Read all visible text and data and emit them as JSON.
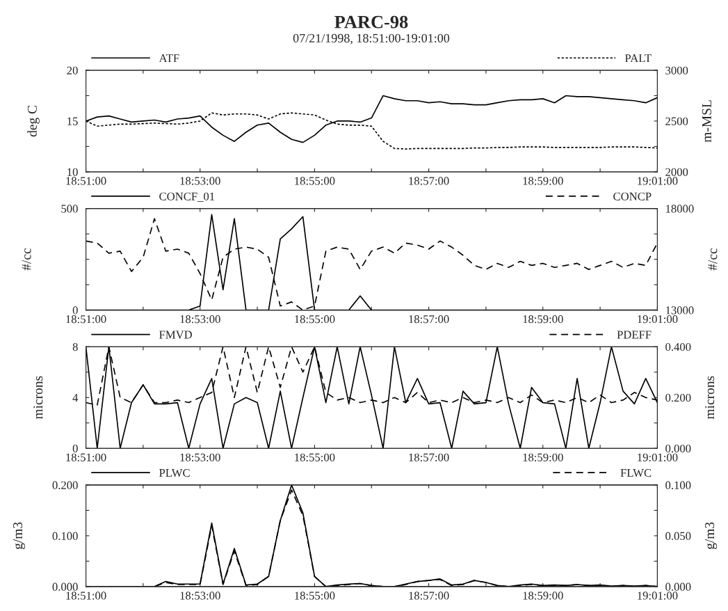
{
  "chart_data": [
    {
      "type": "line",
      "title": "PARC-98",
      "subtitle": "07/21/1998, 18:51:00-19:01:00",
      "ylabel": "deg C",
      "y2label": "m-MSL",
      "legend": "top",
      "grid": false,
      "x": [
        18.85,
        18.8533,
        18.8567,
        18.86,
        18.8633,
        18.8667,
        18.87,
        18.8733,
        18.8767,
        18.88,
        18.8833,
        18.8867,
        18.89,
        18.8933,
        18.8967,
        18.9,
        18.9033,
        18.9067,
        18.91,
        18.9133,
        18.9167,
        18.92,
        18.9233,
        18.9267,
        18.93,
        18.9333,
        18.9367,
        18.94,
        18.9433,
        18.9467,
        18.95,
        18.9533,
        18.9567,
        18.96,
        18.9633,
        18.9667,
        18.97,
        18.9733,
        18.9767,
        18.98,
        18.9833,
        18.9867,
        18.99,
        18.9933,
        18.9967,
        19.0,
        19.0033,
        19.0067,
        19.01,
        19.0133,
        19.0167
      ],
      "xlim": [
        18.85,
        19.0167
      ],
      "xticks": [
        {
          "value": 18.85,
          "label": "18:51:00"
        },
        {
          "value": 18.8667,
          "label": null
        },
        {
          "value": 18.8833,
          "label": "18:53:00"
        },
        {
          "value": 18.9,
          "label": null
        },
        {
          "value": 18.9167,
          "label": "18:55:00"
        },
        {
          "value": 18.9333,
          "label": null
        },
        {
          "value": 18.95,
          "label": "18:57:00"
        },
        {
          "value": 18.9667,
          "label": null
        },
        {
          "value": 18.9833,
          "label": "18:59:00"
        },
        {
          "value": 19.0,
          "label": null
        },
        {
          "value": 19.0167,
          "label": "19:01:00"
        }
      ],
      "ylim": [
        10,
        20
      ],
      "yticks": [
        10,
        {
          "value": 12.5,
          "label": null
        },
        15,
        {
          "value": 17.5,
          "label": null
        },
        20
      ],
      "y2lim": [
        2000,
        3000
      ],
      "y2ticks": [
        2000,
        {
          "value": 2250,
          "label": null
        },
        2500,
        {
          "value": 2750,
          "label": null
        },
        3000
      ],
      "series": [
        {
          "name": "ATF",
          "color": "#000000",
          "line_style": "solid",
          "values": [
            15.0,
            15.4,
            15.5,
            15.2,
            14.9,
            15.0,
            15.1,
            14.9,
            15.2,
            15.3,
            15.5,
            14.4,
            13.6,
            13.0,
            13.9,
            14.6,
            14.8,
            13.9,
            13.2,
            12.9,
            13.6,
            14.6,
            15.0,
            15.0,
            14.9,
            15.3,
            17.5,
            17.2,
            17.0,
            17.0,
            16.8,
            16.9,
            16.7,
            16.7,
            16.6,
            16.6,
            16.8,
            17.0,
            17.1,
            17.1,
            17.2,
            16.8,
            17.5,
            17.4,
            17.4,
            17.3,
            17.2,
            17.1,
            17.0,
            16.8,
            17.3
          ]
        },
        {
          "name": "PALT",
          "color": "#000000",
          "line_style": "dotted",
          "axis": "y2",
          "values": [
            2500,
            2450,
            2460,
            2470,
            2470,
            2475,
            2480,
            2475,
            2470,
            2480,
            2500,
            2580,
            2560,
            2570,
            2570,
            2560,
            2520,
            2570,
            2580,
            2570,
            2560,
            2510,
            2470,
            2460,
            2460,
            2450,
            2300,
            2230,
            2225,
            2230,
            2230,
            2230,
            2230,
            2230,
            2235,
            2235,
            2240,
            2240,
            2245,
            2245,
            2245,
            2240,
            2240,
            2240,
            2240,
            2240,
            2245,
            2245,
            2245,
            2240,
            2235
          ]
        }
      ]
    },
    {
      "type": "line",
      "ylabel": "#/cc",
      "y2label": "#/cc",
      "legend": "top",
      "grid": false,
      "x": [
        18.85,
        18.8533,
        18.8567,
        18.86,
        18.8633,
        18.8667,
        18.87,
        18.8733,
        18.8767,
        18.88,
        18.8833,
        18.8867,
        18.89,
        18.8933,
        18.8967,
        18.9,
        18.9033,
        18.9067,
        18.91,
        18.9133,
        18.9167,
        18.92,
        18.9233,
        18.9267,
        18.93,
        18.9333,
        18.9367,
        18.94,
        18.9433,
        18.9467,
        18.95,
        18.9533,
        18.9567,
        18.96,
        18.9633,
        18.9667,
        18.97,
        18.9733,
        18.9767,
        18.98,
        18.9833,
        18.9867,
        18.99,
        18.9933,
        18.9967,
        19.0,
        19.0033,
        19.0067,
        19.01,
        19.0133,
        19.0167
      ],
      "xlim": [
        18.85,
        19.0167
      ],
      "xticks": [
        {
          "value": 18.85,
          "label": "18:51:00"
        },
        {
          "value": 18.8667,
          "label": null
        },
        {
          "value": 18.8833,
          "label": "18:53:00"
        },
        {
          "value": 18.9,
          "label": null
        },
        {
          "value": 18.9167,
          "label": "18:55:00"
        },
        {
          "value": 18.9333,
          "label": null
        },
        {
          "value": 18.95,
          "label": "18:57:00"
        },
        {
          "value": 18.9667,
          "label": null
        },
        {
          "value": 18.9833,
          "label": "18:59:00"
        },
        {
          "value": 19.0,
          "label": null
        },
        {
          "value": 19.0167,
          "label": "19:01:00"
        }
      ],
      "ylim": [
        0,
        500
      ],
      "yticks": [
        0,
        {
          "value": 125,
          "label": null
        },
        {
          "value": 250,
          "label": null
        },
        {
          "value": 375,
          "label": null
        },
        500
      ],
      "y2lim": [
        13000,
        18000
      ],
      "y2ticks": [
        13000,
        {
          "value": 14250,
          "label": null
        },
        {
          "value": 15500,
          "label": null
        },
        {
          "value": 16750,
          "label": null
        },
        18000
      ],
      "series": [
        {
          "name": "CONCF_01",
          "color": "#000000",
          "line_style": "solid",
          "values": [
            0,
            0,
            0,
            0,
            0,
            0,
            0,
            0,
            0,
            0,
            20,
            470,
            100,
            450,
            0,
            0,
            0,
            350,
            400,
            460,
            0,
            0,
            0,
            0,
            70,
            0,
            0,
            0,
            0,
            0,
            0,
            0,
            0,
            0,
            0,
            0,
            0,
            0,
            0,
            0,
            0,
            0,
            0,
            0,
            0,
            0,
            0,
            0,
            0,
            0,
            0
          ]
        },
        {
          "name": "CONCP",
          "color": "#000000",
          "line_style": "dashed",
          "axis": "y2",
          "values": [
            16400,
            16300,
            15800,
            15900,
            14900,
            15600,
            17500,
            15900,
            16000,
            15800,
            14800,
            13500,
            15600,
            16000,
            16100,
            16000,
            15600,
            13200,
            13400,
            13000,
            13200,
            15900,
            16100,
            16000,
            15000,
            15900,
            16100,
            15800,
            16300,
            16200,
            16000,
            16400,
            16100,
            15700,
            15200,
            15000,
            15300,
            15100,
            15400,
            15200,
            15300,
            15100,
            15200,
            15300,
            15000,
            15200,
            15400,
            15100,
            15300,
            15200,
            16300
          ]
        }
      ]
    },
    {
      "type": "line",
      "ylabel": "microns",
      "y2label": "microns",
      "legend": "top",
      "grid": false,
      "x": [
        18.85,
        18.8533,
        18.8567,
        18.86,
        18.8633,
        18.8667,
        18.87,
        18.8733,
        18.8767,
        18.88,
        18.8833,
        18.8867,
        18.89,
        18.8933,
        18.8967,
        18.9,
        18.9033,
        18.9067,
        18.91,
        18.9133,
        18.9167,
        18.92,
        18.9233,
        18.9267,
        18.93,
        18.9333,
        18.9367,
        18.94,
        18.9433,
        18.9467,
        18.95,
        18.9533,
        18.9567,
        18.96,
        18.9633,
        18.9667,
        18.97,
        18.9733,
        18.9767,
        18.98,
        18.9833,
        18.9867,
        18.99,
        18.9933,
        18.9967,
        19.0,
        19.0033,
        19.0067,
        19.01,
        19.0133,
        19.0167
      ],
      "xlim": [
        18.85,
        19.0167
      ],
      "xticks": [
        {
          "value": 18.85,
          "label": "18:51:00"
        },
        {
          "value": 18.8667,
          "label": null
        },
        {
          "value": 18.8833,
          "label": "18:53:00"
        },
        {
          "value": 18.9,
          "label": null
        },
        {
          "value": 18.9167,
          "label": "18:55:00"
        },
        {
          "value": 18.9333,
          "label": null
        },
        {
          "value": 18.95,
          "label": "18:57:00"
        },
        {
          "value": 18.9667,
          "label": null
        },
        {
          "value": 18.9833,
          "label": "18:59:00"
        },
        {
          "value": 19.0,
          "label": null
        },
        {
          "value": 19.0167,
          "label": "19:01:00"
        }
      ],
      "ylim": [
        0,
        8
      ],
      "yticks": [
        0,
        {
          "value": 2,
          "label": null
        },
        4,
        {
          "value": 6,
          "label": null
        },
        8
      ],
      "y2lim": [
        0,
        0.4
      ],
      "y2ticks": [
        {
          "value": 0,
          "label": "0.000"
        },
        {
          "value": 0.1,
          "label": null
        },
        {
          "value": 0.2,
          "label": "0.200"
        },
        {
          "value": 0.3,
          "label": null
        },
        {
          "value": 0.4,
          "label": "0.400"
        }
      ],
      "series": [
        {
          "name": "FMVD",
          "color": "#000000",
          "line_style": "solid",
          "values": [
            8,
            0,
            8,
            0,
            3.6,
            5.0,
            3.5,
            3.5,
            3.6,
            0,
            3.5,
            5.5,
            0,
            3.5,
            4.0,
            3.6,
            0,
            4.5,
            0,
            4.0,
            8,
            3.6,
            8,
            3.5,
            8,
            4.2,
            0,
            8,
            3.6,
            5.5,
            3.5,
            3.6,
            0,
            4.5,
            3.5,
            3.6,
            8,
            3.5,
            0,
            4.8,
            3.6,
            3.5,
            0,
            5.5,
            0,
            3.6,
            8,
            4.5,
            3.5,
            5.5,
            3.6
          ]
        },
        {
          "name": "PDEFF",
          "color": "#000000",
          "line_style": "dashed",
          "axis": "y2",
          "values": [
            0.18,
            0.17,
            0.4,
            0.2,
            0.18,
            0.25,
            0.18,
            0.18,
            0.19,
            0.18,
            0.2,
            0.22,
            0.4,
            0.2,
            0.4,
            0.22,
            0.4,
            0.24,
            0.4,
            0.3,
            0.4,
            0.22,
            0.19,
            0.2,
            0.18,
            0.19,
            0.18,
            0.2,
            0.18,
            0.22,
            0.18,
            0.19,
            0.18,
            0.2,
            0.18,
            0.19,
            0.18,
            0.2,
            0.18,
            0.21,
            0.18,
            0.19,
            0.18,
            0.2,
            0.18,
            0.21,
            0.18,
            0.19,
            0.22,
            0.2,
            0.19
          ]
        }
      ]
    },
    {
      "type": "line",
      "ylabel": "g/m3",
      "y2label": "g/m3",
      "legend": "top",
      "grid": false,
      "x": [
        18.85,
        18.8533,
        18.8567,
        18.86,
        18.8633,
        18.8667,
        18.87,
        18.8733,
        18.8767,
        18.88,
        18.8833,
        18.8867,
        18.89,
        18.8933,
        18.8967,
        18.9,
        18.9033,
        18.9067,
        18.91,
        18.9133,
        18.9167,
        18.92,
        18.9233,
        18.9267,
        18.93,
        18.9333,
        18.9367,
        18.94,
        18.9433,
        18.9467,
        18.95,
        18.9533,
        18.9567,
        18.96,
        18.9633,
        18.9667,
        18.97,
        18.9733,
        18.9767,
        18.98,
        18.9833,
        18.9867,
        18.99,
        18.9933,
        18.9967,
        19.0,
        19.0033,
        19.0067,
        19.01,
        19.0133,
        19.0167
      ],
      "xlim": [
        18.85,
        19.0167
      ],
      "xticks": [
        {
          "value": 18.85,
          "label": "18:51:00"
        },
        {
          "value": 18.8667,
          "label": null
        },
        {
          "value": 18.8833,
          "label": "18:53:00"
        },
        {
          "value": 18.9,
          "label": null
        },
        {
          "value": 18.9167,
          "label": "18:55:00"
        },
        {
          "value": 18.9333,
          "label": null
        },
        {
          "value": 18.95,
          "label": "18:57:00"
        },
        {
          "value": 18.9667,
          "label": null
        },
        {
          "value": 18.9833,
          "label": "18:59:00"
        },
        {
          "value": 19.0,
          "label": null
        },
        {
          "value": 19.0167,
          "label": "19:01:00"
        }
      ],
      "ylim": [
        0,
        0.2
      ],
      "yticks": [
        {
          "value": 0,
          "label": "0.000"
        },
        {
          "value": 0.05,
          "label": null
        },
        {
          "value": 0.1,
          "label": "0.100"
        },
        {
          "value": 0.15,
          "label": null
        },
        {
          "value": 0.2,
          "label": "0.200"
        }
      ],
      "y2lim": [
        0,
        0.1
      ],
      "y2ticks": [
        {
          "value": 0,
          "label": "0.000"
        },
        {
          "value": 0.025,
          "label": null
        },
        {
          "value": 0.05,
          "label": "0.050"
        },
        {
          "value": 0.075,
          "label": null
        },
        {
          "value": 0.1,
          "label": "0.100"
        }
      ],
      "series": [
        {
          "name": "PLWC",
          "color": "#000000",
          "line_style": "solid",
          "values": [
            0,
            0,
            0,
            0,
            0,
            0,
            0,
            0.01,
            0.005,
            0.005,
            0.005,
            0.125,
            0.005,
            0.075,
            0.003,
            0.005,
            0.02,
            0.13,
            0.2,
            0.145,
            0.02,
            0,
            0.003,
            0.005,
            0.006,
            0.002,
            0,
            0,
            0.005,
            0.01,
            0.012,
            0.015,
            0.003,
            0.005,
            0.012,
            0.008,
            0.002,
            0,
            0.003,
            0.005,
            0.002,
            0.003,
            0.002,
            0.004,
            0.002,
            0.003,
            0.001,
            0.002,
            0.001,
            0.002,
            0
          ]
        },
        {
          "name": "FLWC",
          "color": "#000000",
          "line_style": "dashed",
          "axis": "y2",
          "values": [
            0,
            0,
            0,
            0,
            0,
            0,
            0,
            0.004,
            0.002,
            0.002,
            0.002,
            0.06,
            0.002,
            0.035,
            0.001,
            0.002,
            0.01,
            0.065,
            0.095,
            0.07,
            0.01,
            0,
            0.001,
            0.002,
            0.003,
            0.001,
            0,
            0,
            0.002,
            0.005,
            0.006,
            0.007,
            0.001,
            0.002,
            0.006,
            0.004,
            0.001,
            0,
            0.001,
            0.002,
            0.001,
            0.001,
            0.001,
            0.002,
            0.001,
            0.001,
            0,
            0.001,
            0,
            0.001,
            0
          ]
        }
      ]
    }
  ]
}
